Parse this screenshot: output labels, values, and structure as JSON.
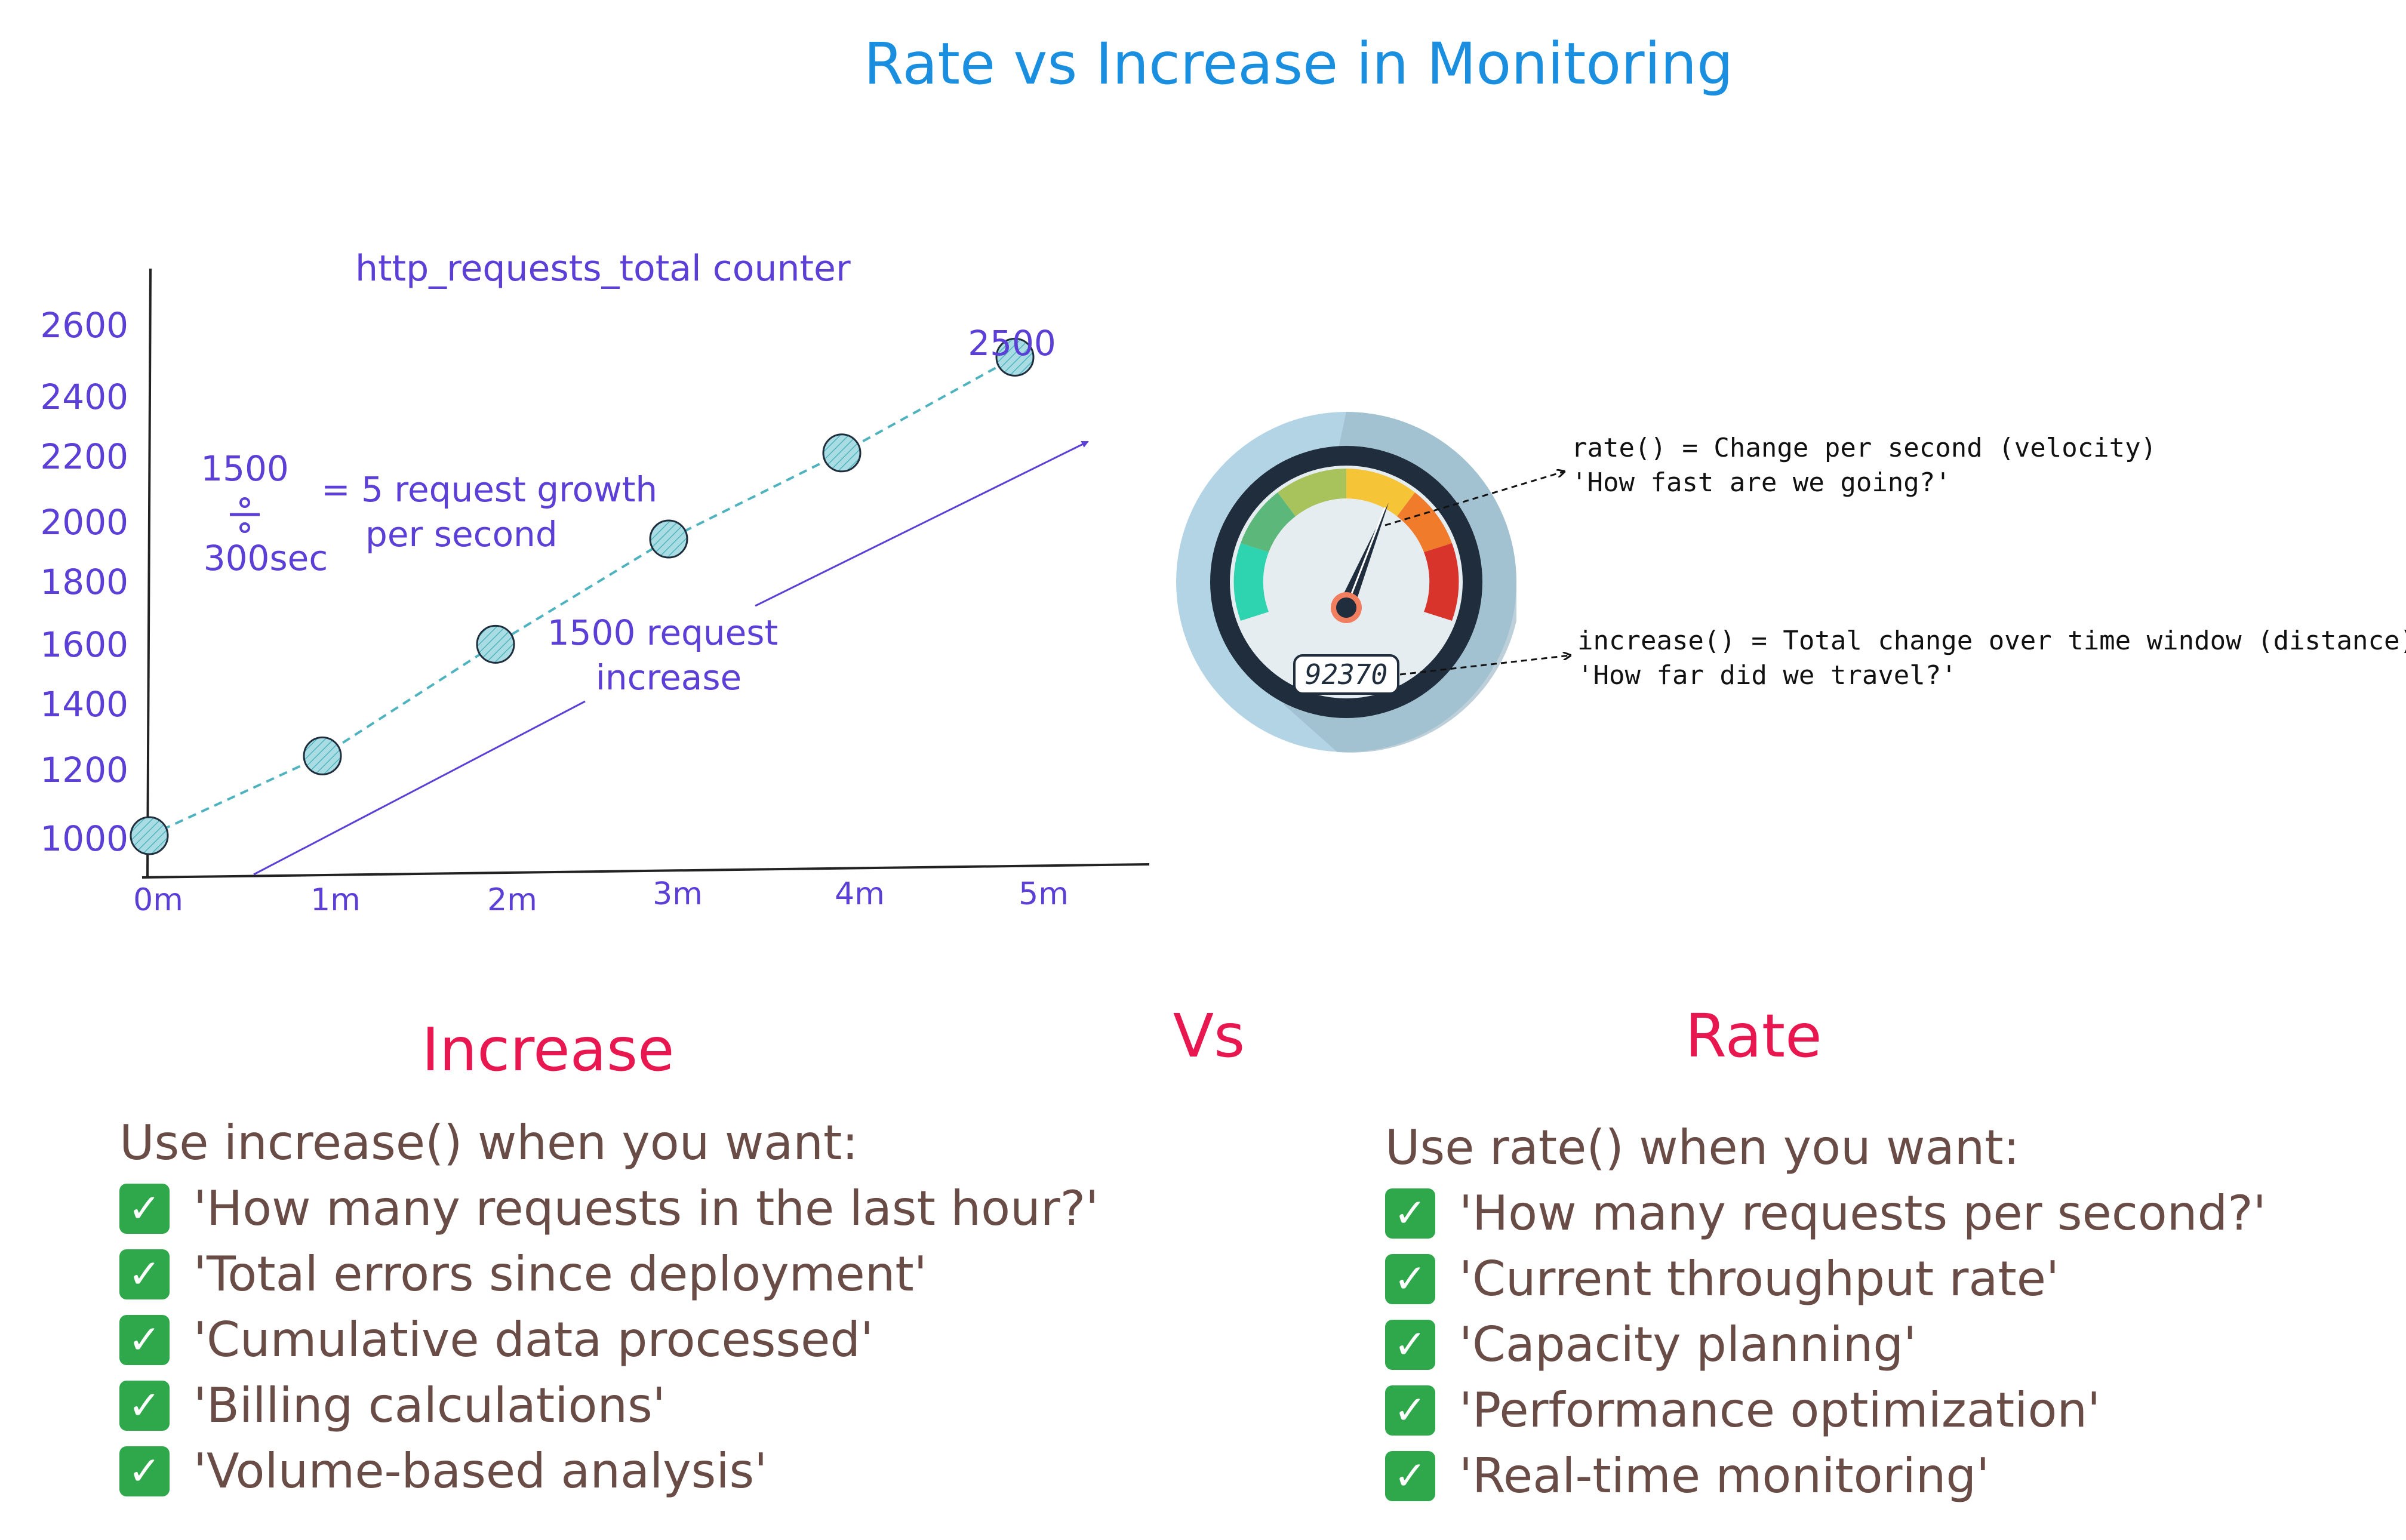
{
  "title": "Rate vs Increase in Monitoring",
  "colors": {
    "title": "#1a8fe0",
    "chart_text": "#5b3fd6",
    "heading": "#e8174f",
    "list_text": "#6a4c47",
    "point_fill": "#a9dde3",
    "check": "#2ea84a"
  },
  "chart_data": {
    "type": "scatter",
    "title": "http_requests_total counter",
    "x": [
      "0m",
      "1m",
      "2m",
      "3m",
      "4m",
      "5m"
    ],
    "y": [
      1000,
      1250,
      1600,
      1930,
      2200,
      2500
    ],
    "yticks": [
      1000,
      1200,
      1400,
      1600,
      1800,
      2000,
      2200,
      2400,
      2600
    ],
    "ylim": [
      1000,
      2600
    ],
    "xlabel": "",
    "ylabel": "",
    "grid": false,
    "trendline": "dashed",
    "point_label": "2500"
  },
  "annotations": {
    "fraction_top": "1500",
    "fraction_bottom": "300sec",
    "growth_line1": "= 5 request growth",
    "growth_line2": "per second",
    "increase_line1": "1500 request",
    "increase_line2": "increase"
  },
  "gauge": {
    "odometer": "92370",
    "rate_line1": "rate() = Change per second (velocity)",
    "rate_line2": "'How fast are we going?'",
    "increase_line1": "increase() = Total change over time window (distance)",
    "increase_line2": "'How far did we travel?'"
  },
  "comparison": {
    "vs": "Vs",
    "increase": {
      "heading": "Increase",
      "intro": "Use increase() when you want:",
      "items": [
        "'How many requests in the last hour?'",
        "'Total errors since deployment'",
        "'Cumulative data processed'",
        "'Billing calculations'",
        "'Volume-based analysis'"
      ]
    },
    "rate": {
      "heading": "Rate",
      "intro": "Use rate() when you want:",
      "items": [
        "'How many requests per second?'",
        "'Current throughput rate'",
        "'Capacity planning'",
        "'Performance optimization'",
        "'Real-time monitoring'"
      ]
    },
    "check_icon": "check-mark-icon"
  }
}
